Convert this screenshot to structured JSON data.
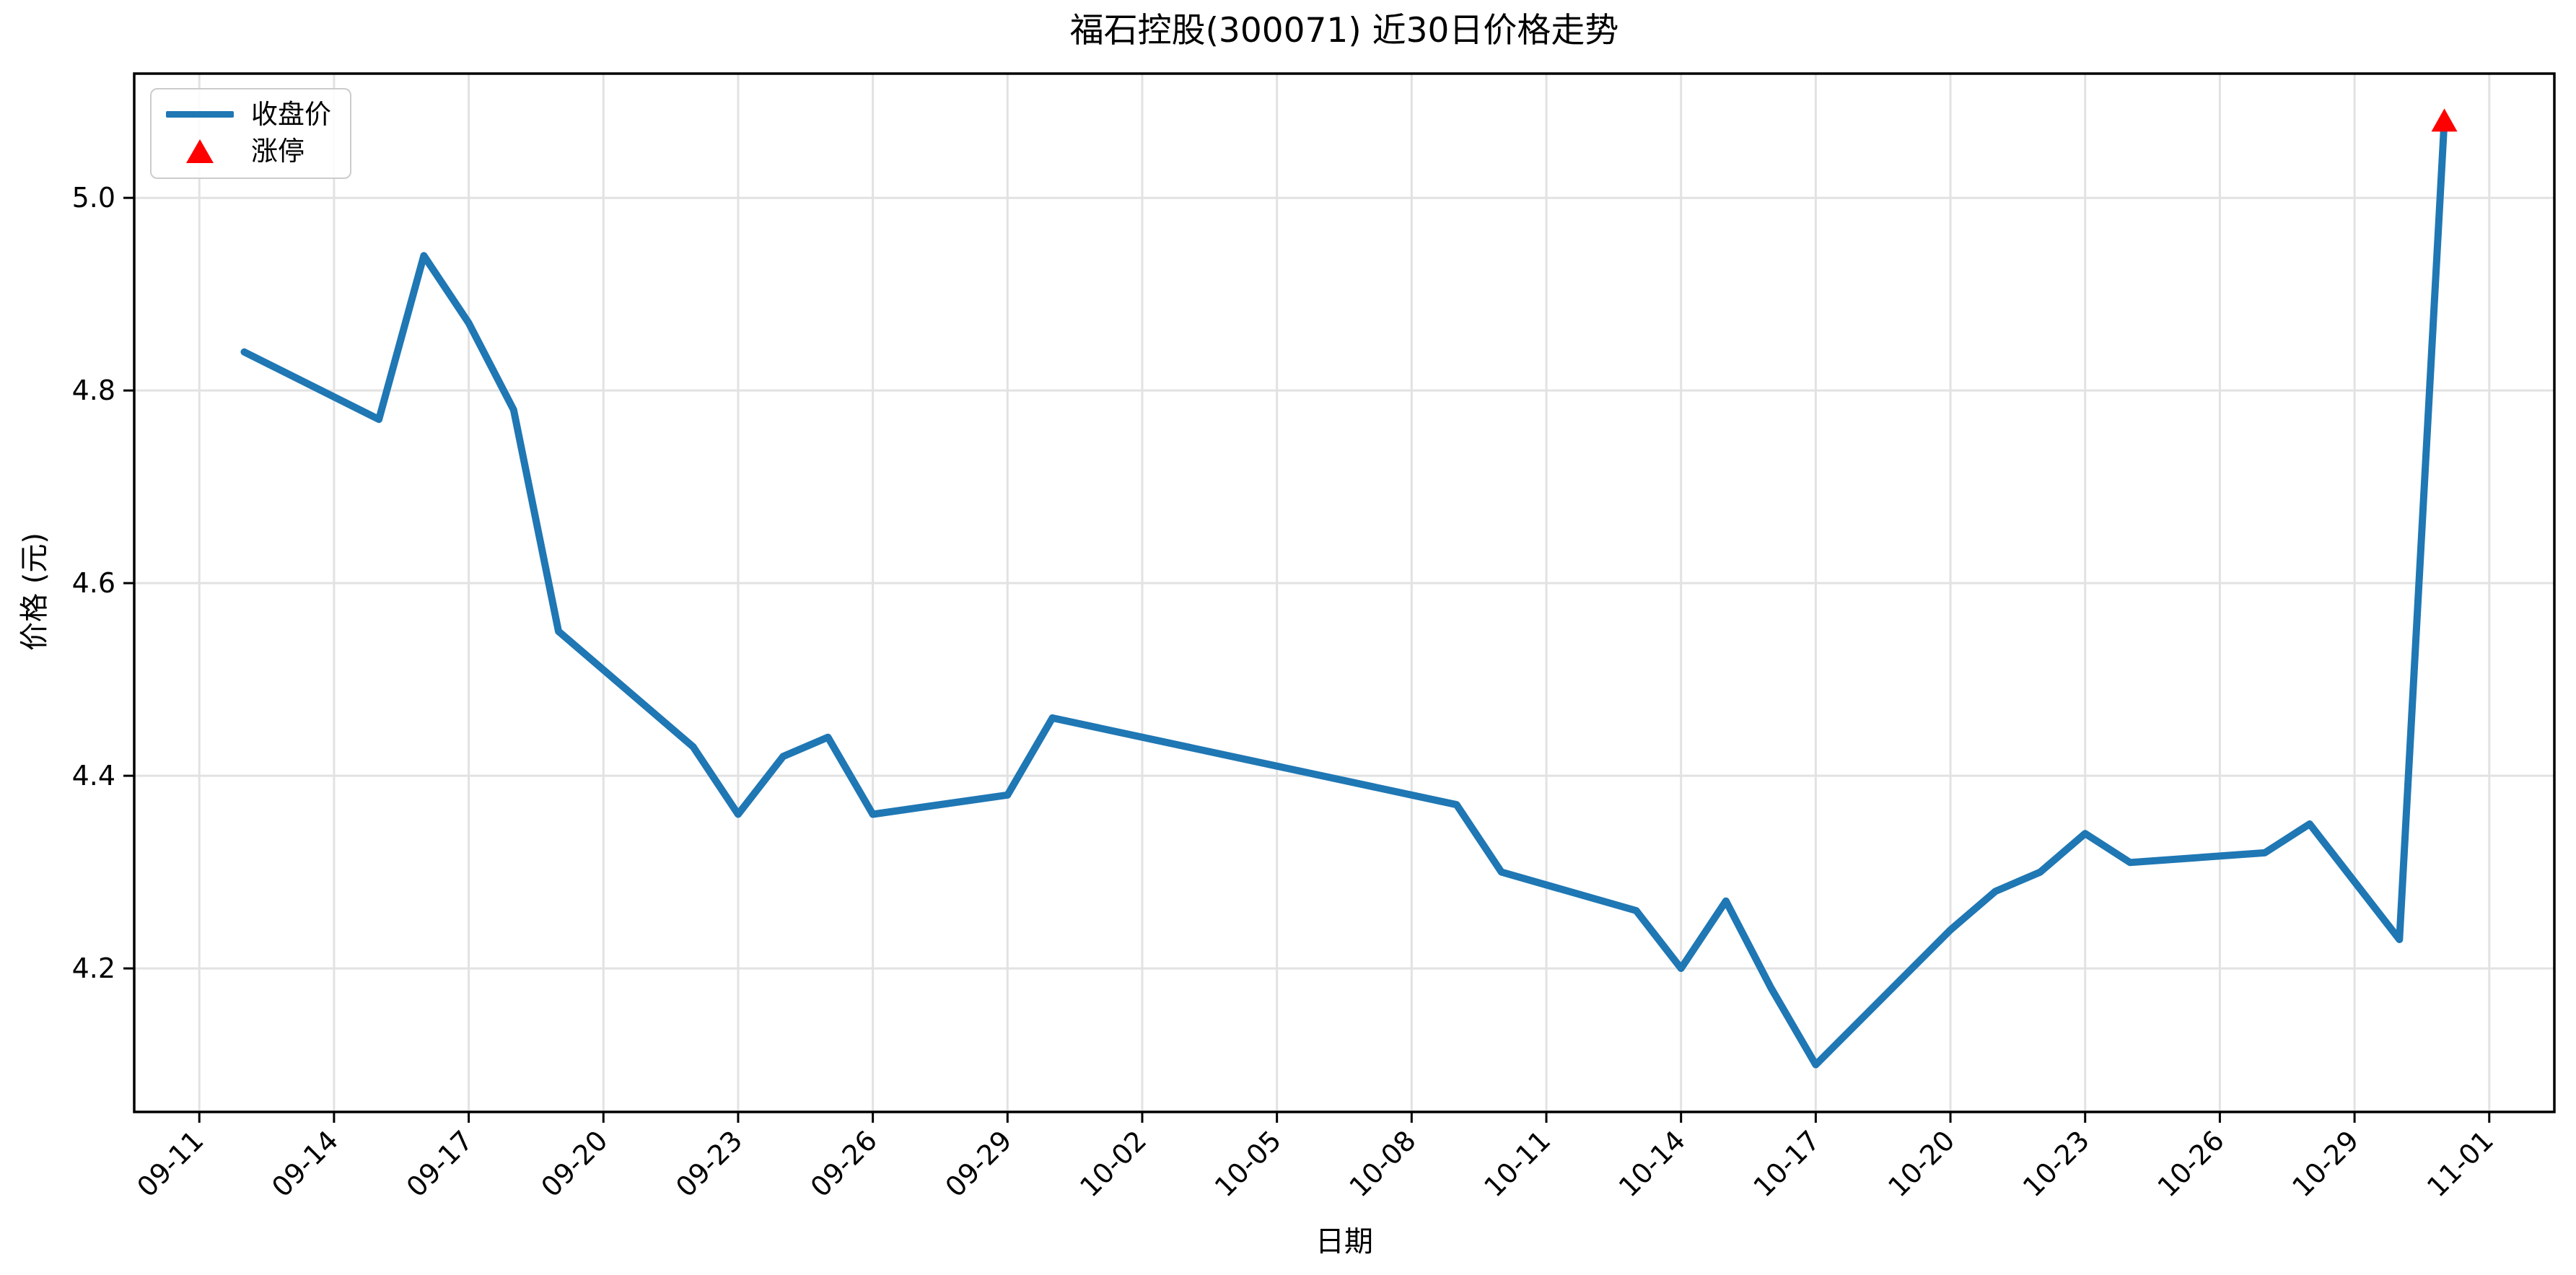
{
  "chart_data": {
    "type": "line",
    "title": "福石控股(300071) 近30日价格走势",
    "xlabel": "日期",
    "ylabel": "价格 (元)",
    "grid": true,
    "legend_position": "upper-left",
    "x_origin_date": "09-11",
    "x_range_days": [
      -1.45,
      52.45
    ],
    "y_range": [
      4.051,
      5.129
    ],
    "x_tick_labels": [
      "09-11",
      "09-14",
      "09-17",
      "09-20",
      "09-23",
      "09-26",
      "09-29",
      "10-02",
      "10-05",
      "10-08",
      "10-11",
      "10-14",
      "10-17",
      "10-20",
      "10-23",
      "10-26",
      "10-29",
      "11-01"
    ],
    "y_tick_labels": [
      "4.2",
      "4.4",
      "4.6",
      "4.8",
      "5.0"
    ],
    "series": [
      {
        "name": "收盘价",
        "type": "line",
        "color": "#1f77b4",
        "dates": [
          "09-12",
          "09-15",
          "09-16",
          "09-17",
          "09-18",
          "09-19",
          "09-22",
          "09-23",
          "09-24",
          "09-25",
          "09-26",
          "09-29",
          "09-30",
          "10-09",
          "10-10",
          "10-13",
          "10-14",
          "10-15",
          "10-16",
          "10-17",
          "10-20",
          "10-21",
          "10-22",
          "10-23",
          "10-24",
          "10-27",
          "10-28",
          "10-29",
          "10-30",
          "10-31"
        ],
        "values": [
          4.84,
          4.77,
          4.94,
          4.87,
          4.78,
          4.55,
          4.43,
          4.36,
          4.42,
          4.44,
          4.36,
          4.38,
          4.46,
          4.37,
          4.3,
          4.26,
          4.2,
          4.27,
          4.18,
          4.1,
          4.24,
          4.28,
          4.3,
          4.34,
          4.31,
          4.32,
          4.35,
          4.29,
          4.23,
          5.08
        ]
      }
    ],
    "markers": [
      {
        "name": "涨停",
        "symbol": "triangle-up",
        "color": "#ff0000",
        "date": "10-31",
        "value": 5.08
      }
    ],
    "colors": {
      "line": "#1f77b4",
      "marker": "#ff0000",
      "grid": "#e2e2e2",
      "spine": "#000000",
      "background": "#ffffff"
    }
  }
}
